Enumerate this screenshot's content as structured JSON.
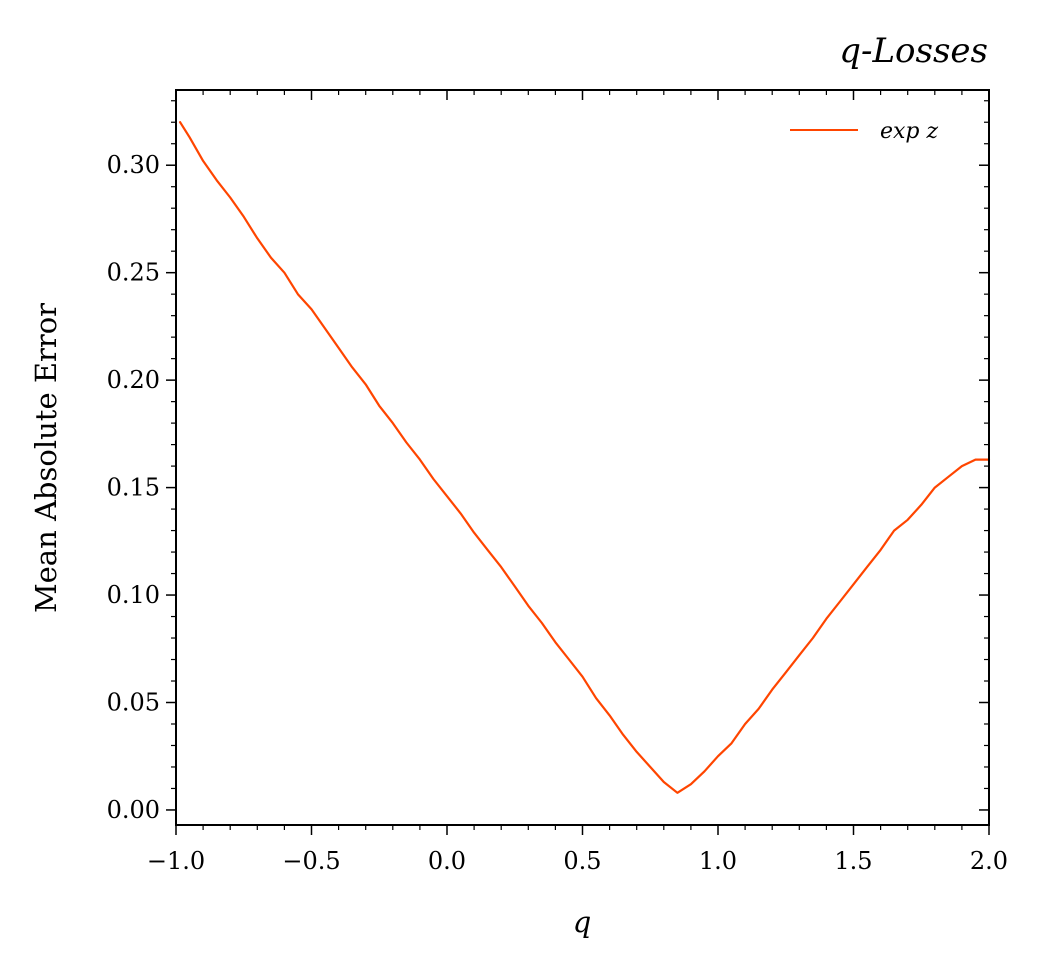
{
  "chart_data": {
    "type": "line",
    "title": "q-Losses",
    "xlabel": "q",
    "ylabel": "Mean Absolute Error",
    "xlim": [
      -1.0,
      2.0
    ],
    "ylim": [
      -0.007,
      0.335
    ],
    "xticks": [
      -1.0,
      -0.5,
      0.0,
      0.5,
      1.0,
      1.5,
      2.0
    ],
    "xtick_labels": [
      "−1.0",
      "−0.5",
      "0.0",
      "0.5",
      "1.0",
      "1.5",
      "2.0"
    ],
    "yticks": [
      0.0,
      0.05,
      0.1,
      0.15,
      0.2,
      0.25,
      0.3
    ],
    "ytick_labels": [
      "0.00",
      "0.05",
      "0.10",
      "0.15",
      "0.20",
      "0.25",
      "0.30"
    ],
    "grid": false,
    "legend_position": "top-right",
    "series": [
      {
        "name": "exp z",
        "color": "#ff4500",
        "x": [
          -0.985,
          -0.95,
          -0.9,
          -0.85,
          -0.8,
          -0.75,
          -0.7,
          -0.65,
          -0.6,
          -0.55,
          -0.5,
          -0.45,
          -0.4,
          -0.35,
          -0.3,
          -0.25,
          -0.2,
          -0.15,
          -0.1,
          -0.05,
          0.0,
          0.05,
          0.1,
          0.15,
          0.2,
          0.25,
          0.3,
          0.35,
          0.4,
          0.45,
          0.5,
          0.55,
          0.6,
          0.65,
          0.7,
          0.75,
          0.8,
          0.85,
          0.9,
          0.95,
          1.0,
          1.05,
          1.1,
          1.15,
          1.2,
          1.25,
          1.3,
          1.35,
          1.4,
          1.45,
          1.5,
          1.55,
          1.6,
          1.65,
          1.7,
          1.75,
          1.8,
          1.85,
          1.9,
          1.95,
          2.0
        ],
        "values": [
          0.32,
          0.313,
          0.302,
          0.293,
          0.285,
          0.276,
          0.266,
          0.257,
          0.25,
          0.24,
          0.233,
          0.224,
          0.215,
          0.206,
          0.198,
          0.188,
          0.18,
          0.171,
          0.163,
          0.154,
          0.146,
          0.138,
          0.129,
          0.121,
          0.113,
          0.104,
          0.095,
          0.087,
          0.078,
          0.07,
          0.062,
          0.052,
          0.044,
          0.035,
          0.027,
          0.02,
          0.013,
          0.008,
          0.012,
          0.018,
          0.025,
          0.031,
          0.04,
          0.047,
          0.056,
          0.064,
          0.072,
          0.08,
          0.089,
          0.097,
          0.105,
          0.113,
          0.121,
          0.13,
          0.135,
          0.142,
          0.15,
          0.155,
          0.16,
          0.163,
          0.163
        ]
      }
    ]
  }
}
